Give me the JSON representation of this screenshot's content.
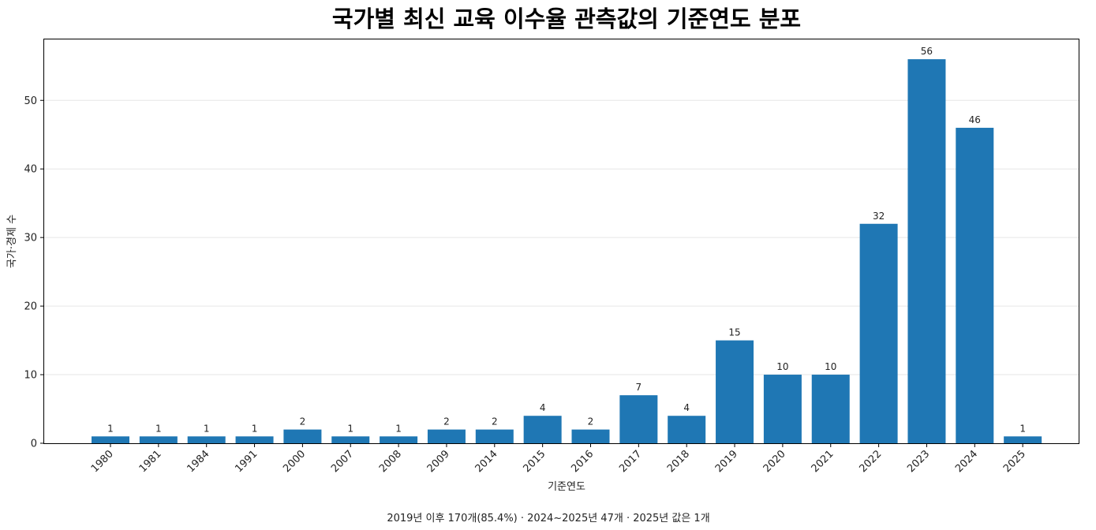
{
  "chart_data": {
    "type": "bar",
    "title": "국가별 최신 교육 이수율 관측값의 기준연도 분포",
    "xlabel": "기준연도",
    "ylabel": "국가·경제 수",
    "categories": [
      "1980",
      "1981",
      "1984",
      "1991",
      "2000",
      "2007",
      "2008",
      "2009",
      "2014",
      "2015",
      "2016",
      "2017",
      "2018",
      "2019",
      "2020",
      "2021",
      "2022",
      "2023",
      "2024",
      "2025"
    ],
    "values": [
      1,
      1,
      1,
      1,
      2,
      1,
      1,
      2,
      2,
      4,
      2,
      7,
      4,
      15,
      10,
      10,
      32,
      56,
      46,
      1
    ],
    "ylim": [
      0,
      59
    ],
    "yticks": [
      0,
      10,
      20,
      30,
      40,
      50
    ],
    "grid": true,
    "bar_color": "#1f77b4",
    "footnote": "2019년 이후 170개(85.4%) · 2024~2025년 47개 · 2025년 값은 1개"
  }
}
